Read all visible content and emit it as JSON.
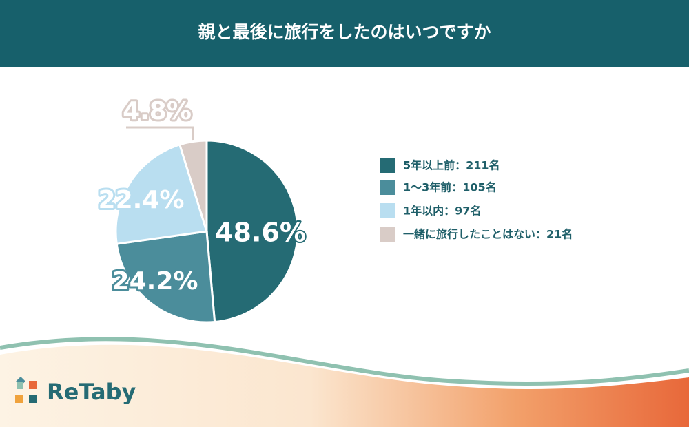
{
  "chart_data": {
    "type": "pie",
    "title": "親と最後に旅行をしたのはいつですか",
    "categories": [
      "5年以上前：211名",
      "1〜3年前：105名",
      "1年以内：97名",
      "一緒に旅行したことはない：21名"
    ],
    "values": [
      48.6,
      24.2,
      22.4,
      4.8
    ],
    "value_labels": [
      "48.6%",
      "24.2%",
      "22.4%",
      "4.8%"
    ],
    "colors": [
      "#256b74",
      "#4b8d9b",
      "#b9def0",
      "#d9ccc7"
    ],
    "legend": "right"
  },
  "brand": "ReTaby"
}
